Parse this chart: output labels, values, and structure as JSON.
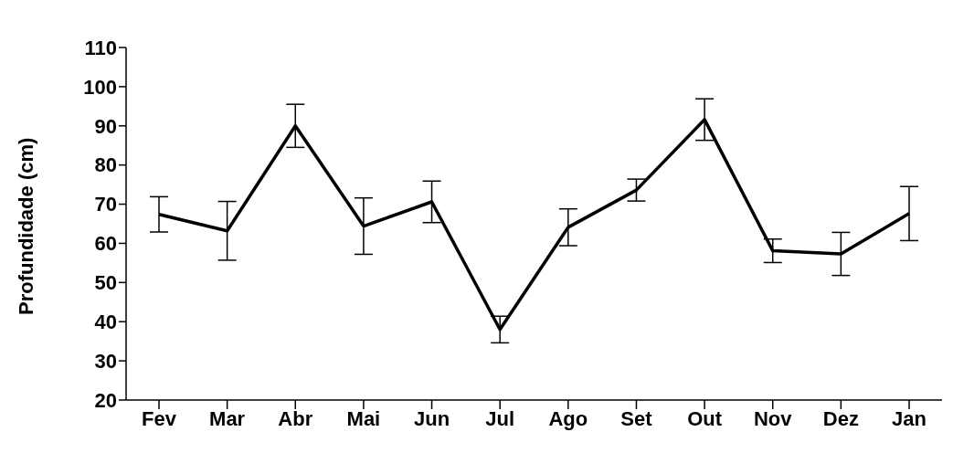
{
  "chart_data": {
    "type": "line",
    "ylabel": "Profundidade (cm)",
    "categories": [
      "Fev",
      "Mar",
      "Abr",
      "Mai",
      "Jun",
      "Jul",
      "Ago",
      "Set",
      "Out",
      "Nov",
      "Dez",
      "Jan"
    ],
    "series": [
      {
        "color": "#000000",
        "values": [
          67.4,
          63.2,
          90.0,
          64.4,
          70.6,
          38.0,
          64.1,
          73.6,
          91.6,
          58.1,
          57.3,
          67.6
        ],
        "errors": [
          4.5,
          7.5,
          5.5,
          7.2,
          5.3,
          3.4,
          4.7,
          2.8,
          5.3,
          3.0,
          5.5,
          6.9
        ]
      }
    ],
    "ylim": [
      20,
      110
    ],
    "yticks": [
      20,
      30,
      40,
      50,
      60,
      70,
      80,
      90,
      100,
      110
    ],
    "grid": false,
    "legend": false,
    "marker": "none",
    "line_style": "solid"
  }
}
